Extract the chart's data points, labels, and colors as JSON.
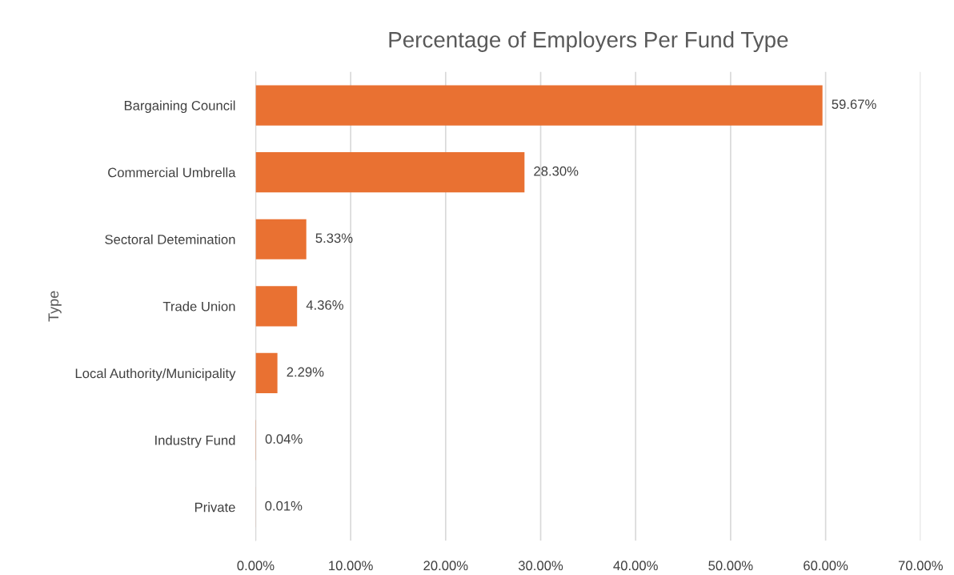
{
  "chart_data": {
    "type": "bar",
    "orientation": "horizontal",
    "title": "Percentage of Employers Per Fund Type",
    "ylabel": "Type",
    "categories": [
      "Bargaining Council",
      "Commercial Umbrella",
      "Sectoral Detemination",
      "Trade Union",
      "Local Authority/Municipality",
      "Industry Fund",
      "Private"
    ],
    "values": [
      59.67,
      28.3,
      5.33,
      4.36,
      2.29,
      0.04,
      0.01
    ],
    "value_labels": [
      "59.67%",
      "28.30%",
      "5.33%",
      "4.36%",
      "2.29%",
      "0.04%",
      "0.01%"
    ],
    "color": "#e97132",
    "xlim": [
      0,
      70
    ],
    "xticks": [
      {
        "value": 0,
        "label": "0.00%"
      },
      {
        "value": 10,
        "label": "10.00%"
      },
      {
        "value": 20,
        "label": "20.00%"
      },
      {
        "value": 30,
        "label": "30.00%"
      },
      {
        "value": 40,
        "label": "40.00%"
      },
      {
        "value": 50,
        "label": "50.00%"
      },
      {
        "value": 60,
        "label": "60.00%"
      },
      {
        "value": 70,
        "label": "70.00%"
      }
    ],
    "grid": "x",
    "legend": false
  }
}
